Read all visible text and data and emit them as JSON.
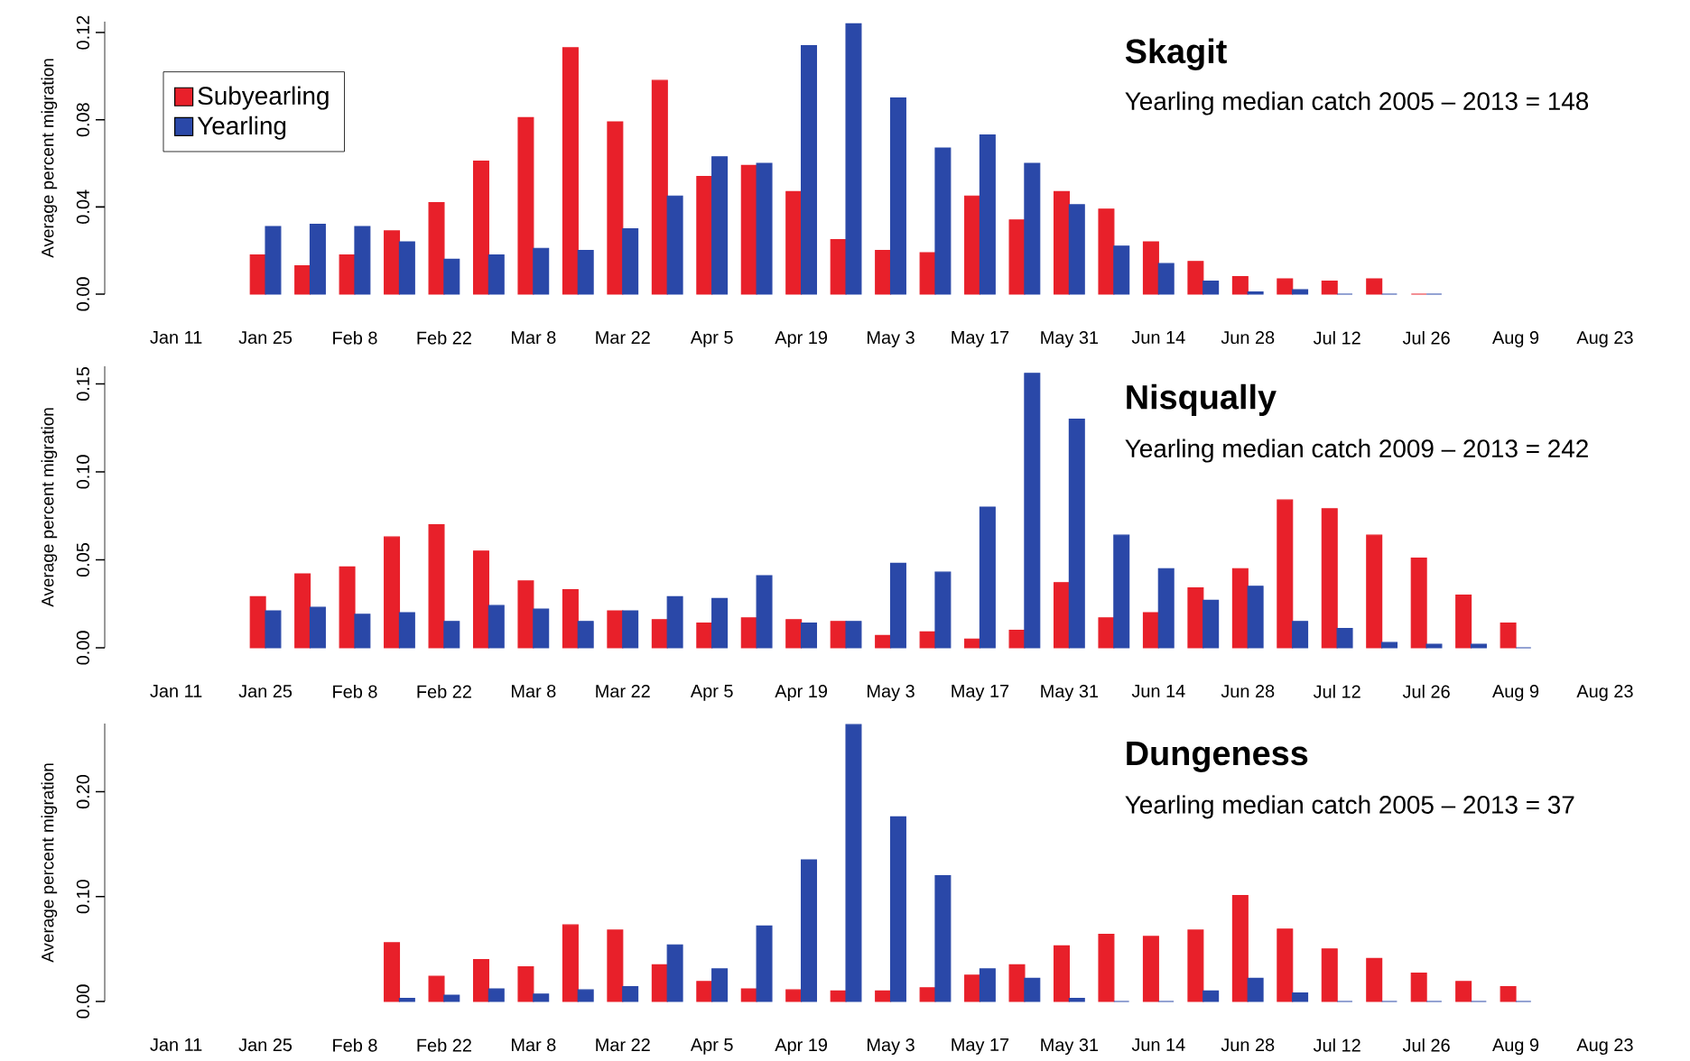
{
  "chart_data": [
    {
      "type": "bar",
      "title": "Skagit",
      "subtitle": "Yearling median catch 2005 – 2013 = 148",
      "ylabel": "Average percent migration",
      "categories": [
        "Jan 11",
        null,
        "Jan 25",
        null,
        "Feb 8",
        null,
        "Feb 22",
        null,
        "Mar 8",
        null,
        "Mar 22",
        null,
        "Apr 5",
        null,
        "Apr 19",
        null,
        "May 3",
        null,
        "May 17",
        null,
        "May 31",
        null,
        "Jun 14",
        null,
        "Jun 28",
        null,
        "Jul 12",
        null,
        "Jul 26",
        null,
        "Aug 9",
        null,
        "Aug 23"
      ],
      "series": [
        {
          "name": "Subyearling",
          "color": "#e8202a",
          "values": [
            null,
            null,
            0.018,
            0.013,
            0.018,
            0.029,
            0.042,
            0.061,
            0.081,
            0.113,
            0.079,
            0.098,
            0.054,
            0.059,
            0.047,
            0.025,
            0.02,
            0.019,
            0.045,
            0.034,
            0.047,
            0.039,
            0.024,
            0.015,
            0.008,
            0.007,
            0.006,
            0.007,
            0,
            null,
            null,
            null,
            null
          ]
        },
        {
          "name": "Yearling",
          "color": "#2a48a8",
          "values": [
            null,
            null,
            0.031,
            0.032,
            0.031,
            0.024,
            0.016,
            0.018,
            0.021,
            0.02,
            0.03,
            0.045,
            0.063,
            0.06,
            0.114,
            0.124,
            0.09,
            0.067,
            0.073,
            0.06,
            0.041,
            0.022,
            0.014,
            0.006,
            0.001,
            0.002,
            0,
            0,
            0,
            null,
            null,
            null,
            null
          ]
        }
      ],
      "ylim": [
        0,
        0.125
      ],
      "yticks": [
        {
          "value": 0,
          "label": "0.00"
        },
        {
          "value": 0.04,
          "label": "0.04"
        },
        {
          "value": 0.08,
          "label": "0.08"
        },
        {
          "value": 0.12,
          "label": "0.12"
        }
      ],
      "legend": "top left"
    },
    {
      "type": "bar",
      "title": "Nisqually",
      "subtitle": "Yearling median catch 2009 – 2013 = 242",
      "ylabel": "Average percent migration",
      "categories": [
        "Jan 11",
        null,
        "Jan 25",
        null,
        "Feb 8",
        null,
        "Feb 22",
        null,
        "Mar 8",
        null,
        "Mar 22",
        null,
        "Apr 5",
        null,
        "Apr 19",
        null,
        "May 3",
        null,
        "May 17",
        null,
        "May 31",
        null,
        "Jun 14",
        null,
        "Jun 28",
        null,
        "Jul 12",
        null,
        "Jul 26",
        null,
        "Aug 9",
        null,
        "Aug 23"
      ],
      "series": [
        {
          "color": "#e8202a",
          "values": [
            null,
            null,
            0.029,
            0.042,
            0.046,
            0.063,
            0.07,
            0.055,
            0.038,
            0.033,
            0.021,
            0.016,
            0.014,
            0.017,
            0.016,
            0.015,
            0.007,
            0.009,
            0.005,
            0.01,
            0.037,
            0.017,
            0.02,
            0.034,
            0.045,
            0.084,
            0.079,
            0.064,
            0.051,
            0.03,
            0.014,
            null,
            null
          ]
        },
        {
          "color": "#2a48a8",
          "values": [
            null,
            null,
            0.021,
            0.023,
            0.019,
            0.02,
            0.015,
            0.024,
            0.022,
            0.015,
            0.021,
            0.029,
            0.028,
            0.041,
            0.014,
            0.015,
            0.048,
            0.043,
            0.08,
            0.156,
            0.13,
            0.064,
            0.045,
            0.027,
            0.035,
            0.015,
            0.011,
            0.003,
            0.002,
            0.002,
            0,
            null,
            null
          ]
        }
      ],
      "ylim": [
        0,
        0.16
      ],
      "yticks": [
        {
          "value": 0,
          "label": "0.00"
        },
        {
          "value": 0.05,
          "label": "0.05"
        },
        {
          "value": 0.1,
          "label": "0.10"
        },
        {
          "value": 0.15,
          "label": "0.15"
        }
      ]
    },
    {
      "type": "bar",
      "title": "Dungeness",
      "subtitle": "Yearling median catch 2005 – 2013 = 37",
      "ylabel": "Average percent migration",
      "categories": [
        "Jan 11",
        null,
        "Jan 25",
        null,
        "Feb 8",
        null,
        "Feb 22",
        null,
        "Mar 8",
        null,
        "Mar 22",
        null,
        "Apr 5",
        null,
        "Apr 19",
        null,
        "May 3",
        null,
        "May 17",
        null,
        "May 31",
        null,
        "Jun 14",
        null,
        "Jun 28",
        null,
        "Jul 12",
        null,
        "Jul 26",
        null,
        "Aug 9",
        null,
        "Aug 23"
      ],
      "series": [
        {
          "color": "#e8202a",
          "values": [
            null,
            null,
            null,
            null,
            null,
            0.056,
            0.024,
            0.04,
            0.033,
            0.073,
            0.068,
            0.035,
            0.019,
            0.012,
            0.011,
            0.01,
            0.01,
            0.013,
            0.025,
            0.035,
            0.053,
            0.064,
            0.062,
            0.068,
            0.101,
            0.069,
            0.05,
            0.041,
            0.027,
            0.019,
            0.014,
            null,
            null
          ]
        },
        {
          "color": "#2a48a8",
          "values": [
            null,
            null,
            null,
            null,
            null,
            0.003,
            0.006,
            0.012,
            0.007,
            0.011,
            0.014,
            0.054,
            0.031,
            0.072,
            0.135,
            0.264,
            0.176,
            0.12,
            0.031,
            0.022,
            0.003,
            0,
            0,
            0.01,
            0.022,
            0.008,
            0,
            0,
            0,
            0,
            0,
            null,
            null
          ]
        }
      ],
      "ylim": [
        0,
        0.265
      ],
      "yticks": [
        {
          "value": 0,
          "label": "0.00"
        },
        {
          "value": 0.1,
          "label": "0.10"
        },
        {
          "value": 0.2,
          "label": "0.20"
        }
      ]
    }
  ]
}
